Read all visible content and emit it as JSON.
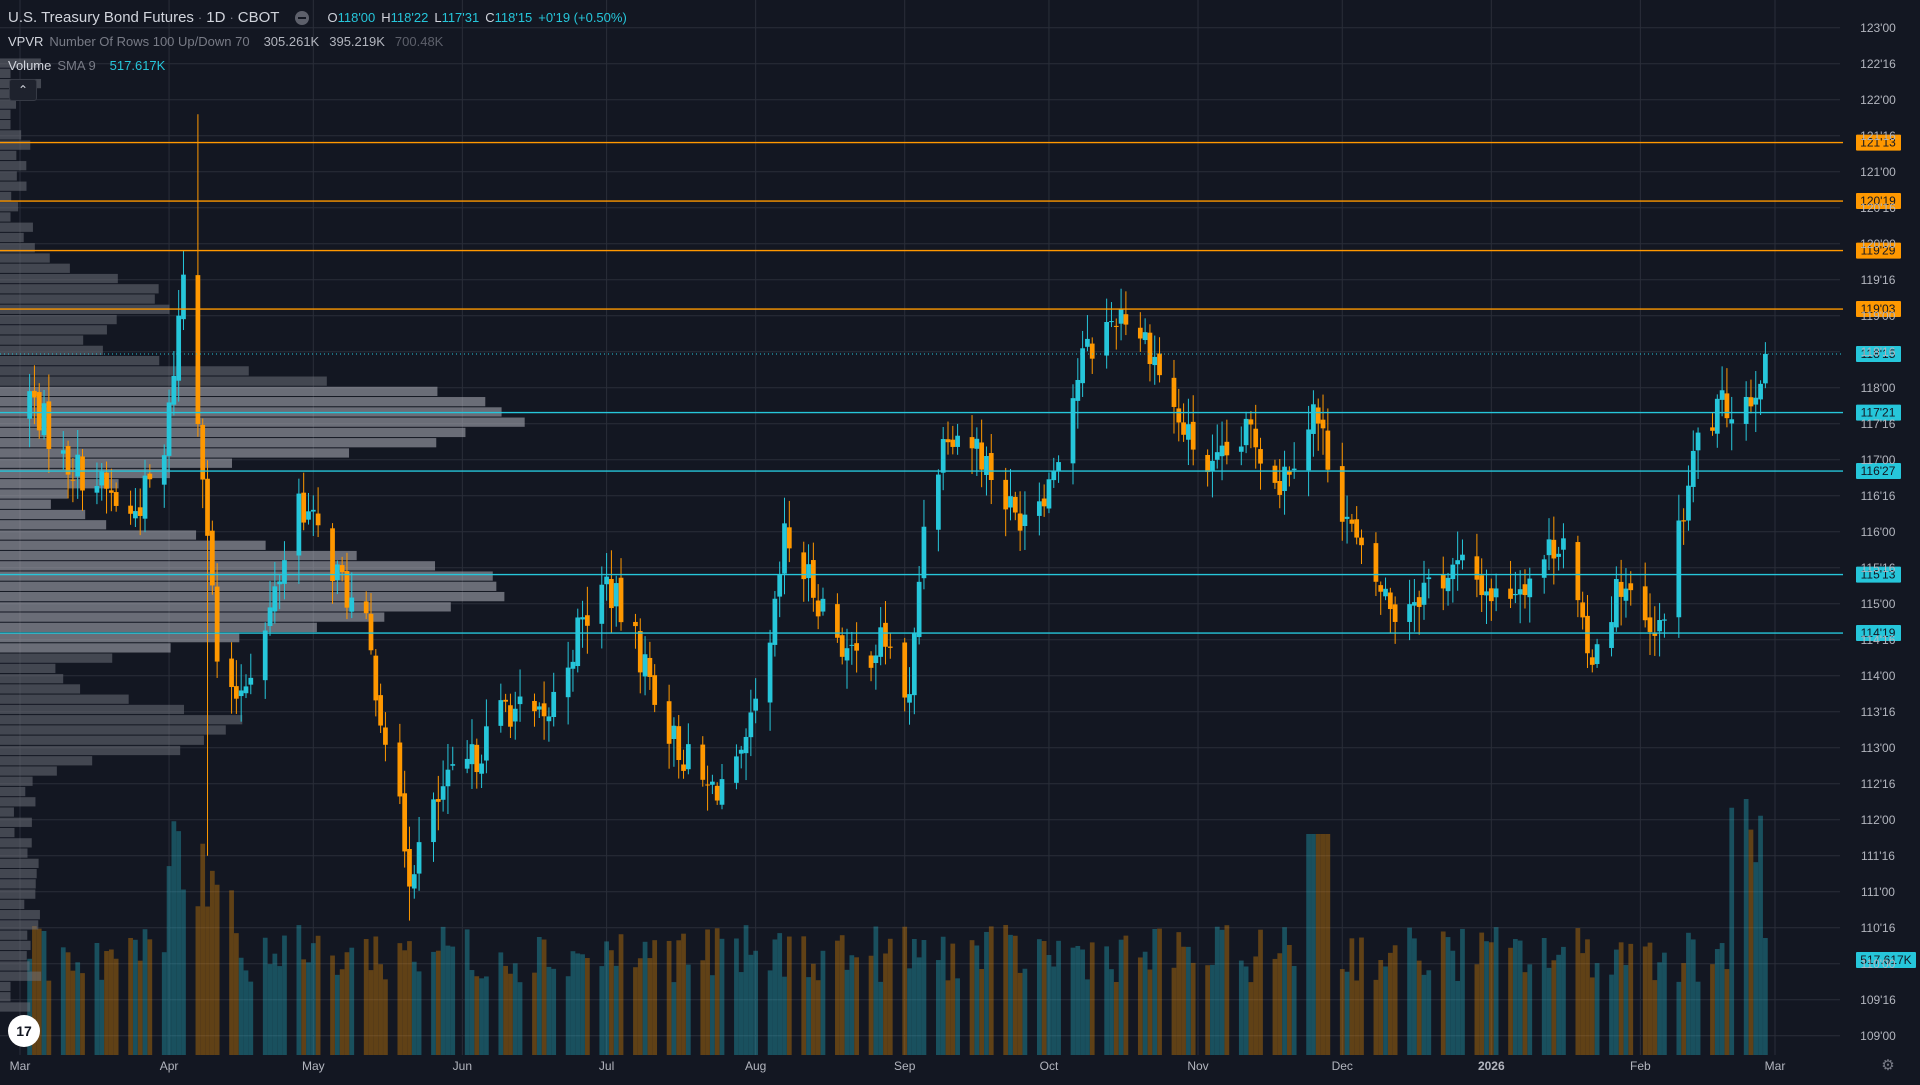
{
  "header": {
    "symbol": "U.S. Treasury Bond Futures",
    "interval": "1D",
    "exchange": "CBOT",
    "ohlc": [
      {
        "label": "O",
        "value": "118'00"
      },
      {
        "label": "H",
        "value": "118'22"
      },
      {
        "label": "L",
        "value": "117'31"
      },
      {
        "label": "C",
        "value": "118'15"
      }
    ],
    "change": "+0'19 (+0.50%)"
  },
  "indicators": [
    {
      "name": "VPVR",
      "args": "Number Of Rows 100 Up/Down 70",
      "values": [
        "305.261K",
        "395.219K",
        "700.48K"
      ]
    },
    {
      "name": "Volume",
      "args": "SMA 9",
      "values": [
        "517.617K"
      ]
    }
  ],
  "colors": {
    "background": "#131722",
    "up": "#26c6da",
    "down": "#ff9800",
    "grid": "#2a2e39",
    "text": "#b2b5be",
    "vpvr": "#6b6f78",
    "vpvr_va": "#b2b5be"
  },
  "icons": {
    "status": "market-status-icon",
    "collapse": "chevron-up-icon",
    "logo": "tradingview-logo-icon",
    "settings": "gear-icon"
  },
  "labels": {
    "collapse": "⌃",
    "logo": "17",
    "settings": "⚙"
  },
  "chart_data": {
    "type": "candlestick",
    "y_axis": {
      "min": 108.9,
      "max": 123.15,
      "ticks": [
        "109'00",
        "109'16",
        "110'00",
        "110'16",
        "111'00",
        "111'16",
        "112'00",
        "112'16",
        "113'00",
        "113'16",
        "114'00",
        "114'16",
        "115'00",
        "115'16",
        "116'00",
        "116'16",
        "117'00",
        "117'16",
        "118'00",
        "118'16",
        "119'00",
        "119'16",
        "120'00",
        "120'16",
        "121'00",
        "121'16",
        "122'00",
        "122'16",
        "123'00"
      ]
    },
    "x_axis": {
      "labels": [
        "Mar",
        "Apr",
        "May",
        "Jun",
        "Jul",
        "Aug",
        "Sep",
        "Oct",
        "Nov",
        "Dec",
        "2026",
        "Feb",
        "Mar"
      ],
      "grid": true
    },
    "anchors": [
      {
        "date": "2025-03-01",
        "price": 117.6
      },
      {
        "date": "2025-03-03",
        "price": 117.9
      },
      {
        "date": "2025-03-10",
        "price": 117.0
      },
      {
        "date": "2025-03-17",
        "price": 116.7
      },
      {
        "date": "2025-03-24",
        "price": 116.2
      },
      {
        "date": "2025-03-31",
        "price": 117.0
      },
      {
        "date": "2025-04-04",
        "price": 119.6
      },
      {
        "date": "2025-04-08",
        "price": 117.0
      },
      {
        "date": "2025-04-11",
        "price": 114.2
      },
      {
        "date": "2025-04-14",
        "price": 113.6
      },
      {
        "date": "2025-04-21",
        "price": 114.6
      },
      {
        "date": "2025-04-28",
        "price": 116.5
      },
      {
        "date": "2025-05-06",
        "price": 115.4
      },
      {
        "date": "2025-05-12",
        "price": 114.6
      },
      {
        "date": "2025-05-16",
        "price": 113.2
      },
      {
        "date": "2025-05-21",
        "price": 111.3
      },
      {
        "date": "2025-05-28",
        "price": 112.4
      },
      {
        "date": "2025-06-03",
        "price": 112.8
      },
      {
        "date": "2025-06-10",
        "price": 113.6
      },
      {
        "date": "2025-06-18",
        "price": 113.3
      },
      {
        "date": "2025-06-25",
        "price": 114.6
      },
      {
        "date": "2025-07-01",
        "price": 115.3
      },
      {
        "date": "2025-07-08",
        "price": 114.3
      },
      {
        "date": "2025-07-15",
        "price": 113.1
      },
      {
        "date": "2025-07-22",
        "price": 112.4
      },
      {
        "date": "2025-07-29",
        "price": 112.7
      },
      {
        "date": "2025-08-04",
        "price": 114.3
      },
      {
        "date": "2025-08-07",
        "price": 115.9
      },
      {
        "date": "2025-08-14",
        "price": 115.1
      },
      {
        "date": "2025-08-21",
        "price": 114.2
      },
      {
        "date": "2025-08-28",
        "price": 114.5
      },
      {
        "date": "2025-09-02",
        "price": 113.6
      },
      {
        "date": "2025-09-05",
        "price": 116.2
      },
      {
        "date": "2025-09-10",
        "price": 117.5
      },
      {
        "date": "2025-09-16",
        "price": 117.2
      },
      {
        "date": "2025-09-24",
        "price": 116.2
      },
      {
        "date": "2025-10-01",
        "price": 116.7
      },
      {
        "date": "2025-10-08",
        "price": 118.4
      },
      {
        "date": "2025-10-16",
        "price": 119.1
      },
      {
        "date": "2025-10-22",
        "price": 118.6
      },
      {
        "date": "2025-10-28",
        "price": 117.5
      },
      {
        "date": "2025-11-04",
        "price": 116.8
      },
      {
        "date": "2025-11-12",
        "price": 117.4
      },
      {
        "date": "2025-11-18",
        "price": 116.7
      },
      {
        "date": "2025-11-25",
        "price": 117.7
      },
      {
        "date": "2025-12-01",
        "price": 116.4
      },
      {
        "date": "2025-12-05",
        "price": 115.6
      },
      {
        "date": "2025-12-12",
        "price": 114.9
      },
      {
        "date": "2025-12-19",
        "price": 115.3
      },
      {
        "date": "2025-12-26",
        "price": 115.5
      },
      {
        "date": "2026-01-02",
        "price": 115.1
      },
      {
        "date": "2026-01-09",
        "price": 115.4
      },
      {
        "date": "2026-01-16",
        "price": 116.0
      },
      {
        "date": "2026-01-21",
        "price": 114.2
      },
      {
        "date": "2026-01-28",
        "price": 115.3
      },
      {
        "date": "2026-02-04",
        "price": 114.4
      },
      {
        "date": "2026-02-09",
        "price": 115.9
      },
      {
        "date": "2026-02-13",
        "price": 117.3
      },
      {
        "date": "2026-02-18",
        "price": 117.7
      },
      {
        "date": "2026-02-24",
        "price": 117.9
      },
      {
        "date": "2026-02-27",
        "price": 118.47
      }
    ],
    "price_lines": [
      {
        "value": "121'13",
        "price": 121.406,
        "color": "#ff9800",
        "style": "solid"
      },
      {
        "value": "120'19",
        "price": 120.594,
        "color": "#ff9800",
        "style": "solid"
      },
      {
        "value": "119'29",
        "price": 119.906,
        "color": "#ff9800",
        "style": "solid"
      },
      {
        "value": "119'03",
        "price": 119.094,
        "color": "#ff9800",
        "style": "solid"
      },
      {
        "value": "118'15",
        "price": 118.469,
        "color": "#26c6da",
        "style": "dotted"
      },
      {
        "value": "117'21",
        "price": 117.656,
        "color": "#26c6da",
        "style": "solid"
      },
      {
        "value": "116'27",
        "price": 116.844,
        "color": "#26c6da",
        "style": "solid"
      },
      {
        "value": "115'13",
        "price": 115.406,
        "color": "#26c6da",
        "style": "solid"
      },
      {
        "value": "114'19",
        "price": 114.594,
        "color": "#26c6da",
        "style": "solid"
      }
    ],
    "volume_label": "517.617K",
    "volume_profile": {
      "row_step": 0.1425,
      "poc_price": 115.2,
      "value_area": [
        114.3,
        118.0
      ],
      "peaks": [
        {
          "price": 117.6,
          "width": 1
        },
        {
          "price": 115.2,
          "width": 0.97
        },
        {
          "price": 119.2,
          "width": 0.3
        },
        {
          "price": 113.3,
          "width": 0.45
        }
      ]
    }
  }
}
